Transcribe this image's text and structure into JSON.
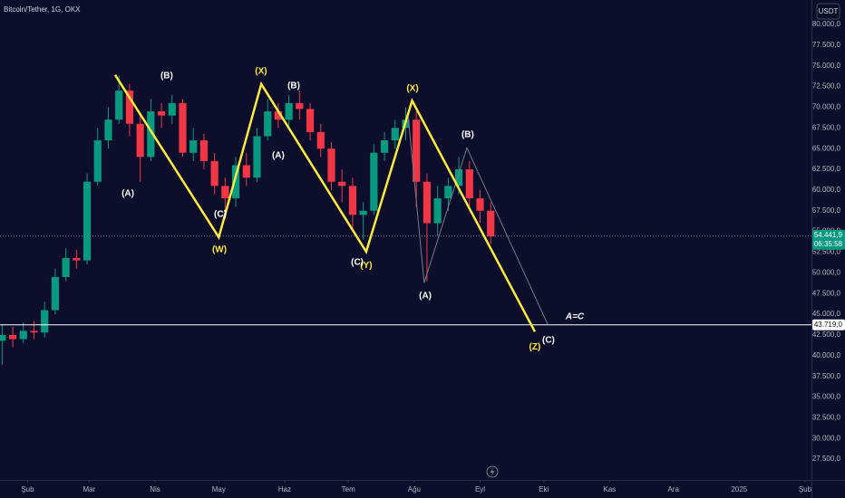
{
  "chart_data": {
    "type": "candlestick",
    "title": "Bitcoin/Tether, 1G, OKX",
    "currency": "USDT",
    "up_color": "#089981",
    "down_color": "#f23645",
    "x": [
      -12,
      -7,
      -2,
      3,
      8,
      13,
      18,
      23,
      28,
      33,
      38,
      43,
      48,
      53,
      58,
      63,
      68,
      73,
      78,
      83,
      88,
      93,
      98,
      103,
      108,
      113,
      118,
      123,
      128,
      133,
      138,
      143,
      148,
      153,
      158,
      163,
      168,
      173,
      178,
      183,
      188,
      193,
      198,
      203,
      208,
      213,
      218
    ],
    "open": [
      41800,
      42500,
      42000,
      43000,
      42800,
      45500,
      49500,
      51800,
      51500,
      61000,
      66000,
      68500,
      72000,
      68000,
      64000,
      69500,
      69000,
      70500,
      64500,
      66000,
      63500,
      60500,
      59000,
      63000,
      61500,
      66500,
      69500,
      68500,
      70500,
      69800,
      67000,
      65000,
      61000,
      60500,
      57000,
      57500,
      64500,
      66000,
      67500,
      68500,
      61000,
      56000,
      59000,
      60500,
      62500,
      59000,
      57500
    ],
    "high": [
      43700,
      43500,
      44000,
      44200,
      46500,
      50500,
      53000,
      52800,
      62000,
      67500,
      70000,
      73800,
      72800,
      69000,
      71000,
      70500,
      71500,
      71000,
      67500,
      66800,
      64500,
      61500,
      64000,
      64500,
      67500,
      71000,
      70500,
      71500,
      72000,
      70500,
      68000,
      65800,
      62500,
      61500,
      58500,
      65500,
      67000,
      68500,
      70000,
      69500,
      62000,
      60500,
      61500,
      64000,
      63500,
      60000,
      58500
    ],
    "low": [
      38900,
      41000,
      41500,
      42000,
      42200,
      45000,
      49000,
      50500,
      51000,
      60500,
      65000,
      68000,
      66500,
      61000,
      63500,
      67500,
      68000,
      64000,
      63500,
      62500,
      59500,
      56500,
      58000,
      60500,
      61000,
      66000,
      67500,
      67500,
      68500,
      66000,
      64000,
      60000,
      58500,
      55000,
      54000,
      57000,
      63500,
      65000,
      66000,
      58000,
      49000,
      54500,
      57500,
      59500,
      58000,
      56000,
      53500
    ],
    "close": [
      42500,
      42000,
      43000,
      42800,
      45500,
      49500,
      51800,
      51500,
      61000,
      66000,
      68500,
      72000,
      68000,
      64000,
      69500,
      69000,
      70500,
      64500,
      66000,
      63500,
      60500,
      59000,
      63000,
      61500,
      66500,
      69500,
      68500,
      70500,
      69800,
      67000,
      65000,
      61000,
      60500,
      57000,
      57500,
      64500,
      66000,
      67500,
      68500,
      61000,
      56000,
      59000,
      60500,
      62500,
      59000,
      57500,
      54400
    ],
    "xlim": [
      -13,
      369
    ],
    "xticks": [
      {
        "value": 0,
        "label": "Şub"
      },
      {
        "value": 29,
        "label": "Mar"
      },
      {
        "value": 60,
        "label": "Nis"
      },
      {
        "value": 90,
        "label": "May"
      },
      {
        "value": 121,
        "label": "Haz"
      },
      {
        "value": 151,
        "label": "Tem"
      },
      {
        "value": 182,
        "label": "Ağu"
      },
      {
        "value": 213,
        "label": "Eyl"
      },
      {
        "value": 243,
        "label": "Eki"
      },
      {
        "value": 274,
        "label": "Kas"
      },
      {
        "value": 304,
        "label": "Ara"
      },
      {
        "value": 335,
        "label": "2025"
      },
      {
        "value": 366,
        "label": "Şub"
      }
    ],
    "ylim": [
      25000,
      82950
    ],
    "yticks": [
      {
        "value": 27500,
        "label": "27.500,0"
      },
      {
        "value": 30000,
        "label": "30.000,0"
      },
      {
        "value": 32500,
        "label": "32.500,0"
      },
      {
        "value": 35000,
        "label": "35.000,0"
      },
      {
        "value": 37500,
        "label": "37.500,0"
      },
      {
        "value": 40000,
        "label": "40.000,0"
      },
      {
        "value": 42500,
        "label": "42.500,0"
      },
      {
        "value": 45000,
        "label": "45.000,0"
      },
      {
        "value": 47500,
        "label": "47.500,0"
      },
      {
        "value": 50000,
        "label": "50.000,0"
      },
      {
        "value": 52500,
        "label": "52.500,0"
      },
      {
        "value": 55000,
        "label": "55.000,0"
      },
      {
        "value": 57500,
        "label": "57.500,0"
      },
      {
        "value": 60000,
        "label": "60.000,0"
      },
      {
        "value": 62500,
        "label": "62.500,0"
      },
      {
        "value": 65000,
        "label": "65.000,0"
      },
      {
        "value": 67500,
        "label": "67.500,0"
      },
      {
        "value": 70000,
        "label": "70.000,0"
      },
      {
        "value": 72500,
        "label": "72.500,0"
      },
      {
        "value": 75000,
        "label": "75.000,0"
      },
      {
        "value": 77500,
        "label": "77.500,0"
      },
      {
        "value": 80000,
        "label": "80.000,0"
      }
    ],
    "price_line": {
      "value": 54441.9,
      "label": "54.441,9",
      "countdown": "06:35:58",
      "color": "#089981"
    },
    "level_line": {
      "value": 43719,
      "label": "43.719,0",
      "color": "#ffffff"
    },
    "waves": [
      {
        "color": "#787b86",
        "width": 1,
        "x": [
          179.1,
          186.7,
          206.8,
          244.8
        ],
        "y": [
          69000,
          48800,
          65100,
          43800
        ]
      },
      {
        "color": "#ffeb3b",
        "width": 2.5,
        "x": [
          41.2,
          90,
          110,
          159.4,
          181,
          238.8
        ],
        "y": [
          73900,
          54300,
          72800,
          52550,
          70800,
          42900
        ]
      }
    ],
    "annotations": [
      {
        "text": "(A)",
        "x": 47.2,
        "y": 59550,
        "color": "#ffffff"
      },
      {
        "text": "(B)",
        "x": 65.5,
        "y": 73770,
        "color": "#ffffff"
      },
      {
        "text": "(C)",
        "x": 90.7,
        "y": 57030,
        "color": "#ffffff"
      },
      {
        "text": "(W)",
        "x": 90.3,
        "y": 52770,
        "color": "#ffeb3b"
      },
      {
        "text": "(X)",
        "x": 109.9,
        "y": 74310,
        "color": "#ffeb3b"
      },
      {
        "text": "(B)",
        "x": 125.3,
        "y": 72560,
        "color": "#ffffff"
      },
      {
        "text": "(A)",
        "x": 118,
        "y": 64140,
        "color": "#ffffff"
      },
      {
        "text": "(C)",
        "x": 155.2,
        "y": 51240,
        "color": "#ffffff"
      },
      {
        "text": "(Y)",
        "x": 159.4,
        "y": 50900,
        "color": "#ffeb3b"
      },
      {
        "text": "(X)",
        "x": 181.2,
        "y": 72240,
        "color": "#ffeb3b"
      },
      {
        "text": "(B)",
        "x": 207.2,
        "y": 66650,
        "color": "#ffffff"
      },
      {
        "text": "(A)",
        "x": 187.2,
        "y": 47190,
        "color": "#ffffff"
      },
      {
        "text": "(C)",
        "x": 245.2,
        "y": 41830,
        "color": "#ffffff"
      },
      {
        "text": "(Z)",
        "x": 238.8,
        "y": 41060,
        "color": "#ffeb3b"
      },
      {
        "text": "A=C",
        "x": 257.6,
        "y": 44670,
        "color": "#ffffff"
      }
    ]
  }
}
